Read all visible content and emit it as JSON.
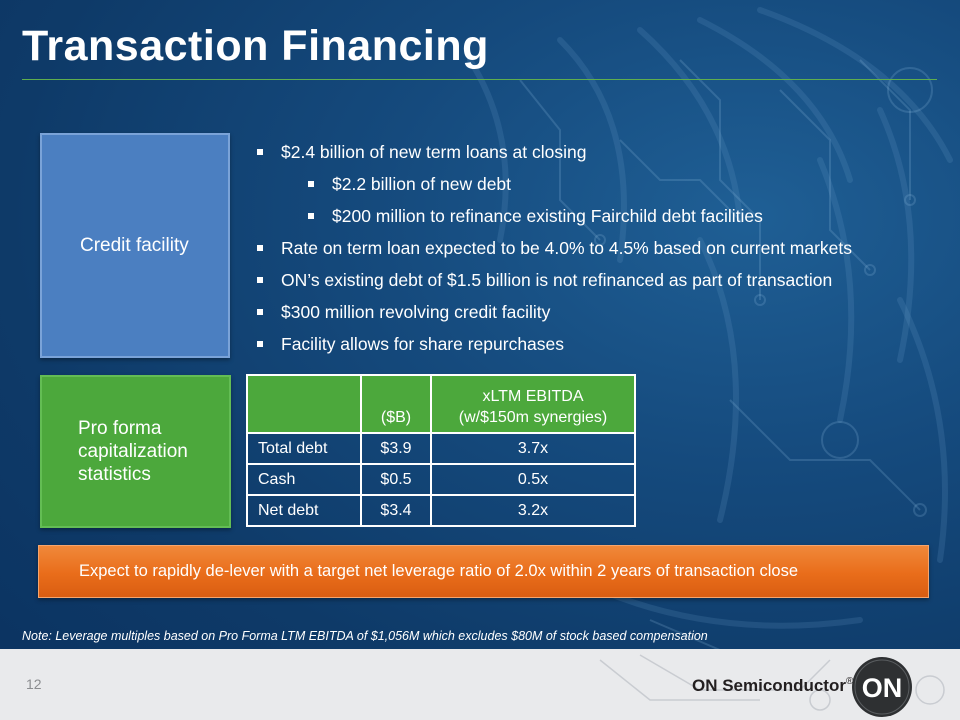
{
  "title": "Transaction Financing",
  "credit": {
    "label": "Credit facility",
    "bullets": [
      "$2.4 billion of new term loans at closing",
      "$2.2 billion of new debt",
      "$200 million to refinance existing Fairchild debt facilities",
      "Rate on term loan expected to be 4.0% to 4.5% based on current markets",
      "ON’s existing debt of $1.5 billion is not refinanced as part of transaction",
      "$300 million revolving credit facility",
      "Facility allows for share repurchases"
    ]
  },
  "proforma": {
    "label": "Pro forma capitalization statistics",
    "table": {
      "headers": [
        "",
        "($B)",
        "xLTM EBITDA",
        "(w/$150m synergies)"
      ],
      "rows": [
        [
          "Total debt",
          "$3.9",
          "3.7x"
        ],
        [
          "Cash",
          "$0.5",
          "0.5x"
        ],
        [
          "Net debt",
          "$3.4",
          "3.2x"
        ]
      ]
    }
  },
  "delever": "Expect to rapidly de-lever with a target net leverage ratio of 2.0x within 2 years of transaction close",
  "note": "Note: Leverage multiples based on Pro Forma LTM EBITDA of $1,056M which excludes $80M of stock based compensation",
  "footer": {
    "page_number": "12",
    "brand": "ON Semiconductor",
    "registered": "®",
    "logo_text": "ON"
  },
  "colors": {
    "background": "#154a7d",
    "credit_box": "#4b7fc1",
    "green": "#4ca83c",
    "orange": "#e96d1a",
    "footer": "#e9eaec",
    "logo": "#2e3032"
  }
}
